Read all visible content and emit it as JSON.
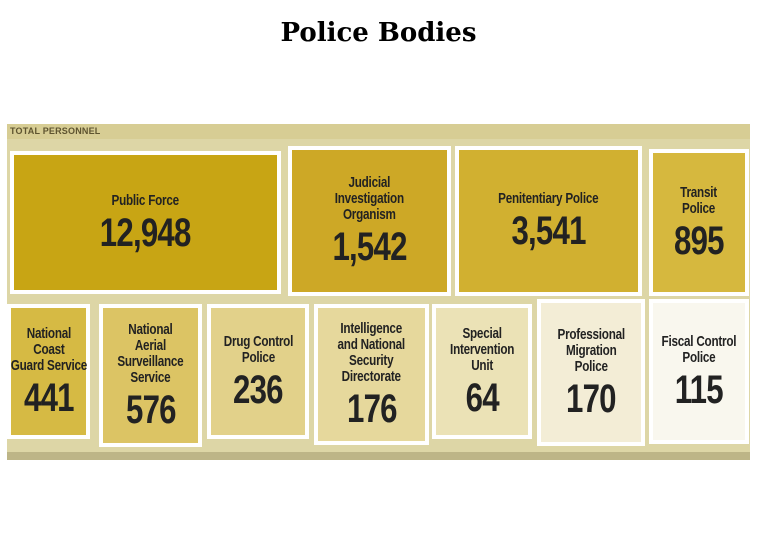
{
  "title": "Police Bodies",
  "chart_data": {
    "type": "table",
    "section_label": "TOTAL PERSONNEL",
    "items": [
      {
        "name": "Public Force",
        "value": 12948,
        "display": "12,948",
        "color": "#c8a514"
      },
      {
        "name": "Judicial Investigation Organism",
        "value": 1542,
        "display": "1,542",
        "color": "#cda826"
      },
      {
        "name": "Penitentiary Police",
        "value": 3541,
        "display": "3,541",
        "color": "#d1b030"
      },
      {
        "name": "Transit Police",
        "value": 895,
        "display": "895",
        "color": "#d6b83e"
      },
      {
        "name": "National Coast Guard Service",
        "value": 441,
        "display": "441",
        "color": "#d6ba44"
      },
      {
        "name": "National Aerial Surveillance Service",
        "value": 576,
        "display": "576",
        "color": "#dcc464"
      },
      {
        "name": "Drug Control Police",
        "value": 236,
        "display": "236",
        "color": "#e2d18a"
      },
      {
        "name": "Intelligence and National Security Directorate",
        "value": 176,
        "display": "176",
        "color": "#e6d89c"
      },
      {
        "name": "Special Intervention Unit",
        "value": 64,
        "display": "64",
        "color": "#ebe2b6"
      },
      {
        "name": "Professional Migration Police",
        "value": 170,
        "display": "170",
        "color": "#f3edd6"
      },
      {
        "name": "Fiscal Control Police",
        "value": 115,
        "display": "115",
        "color": "#f9f7ee"
      }
    ]
  }
}
